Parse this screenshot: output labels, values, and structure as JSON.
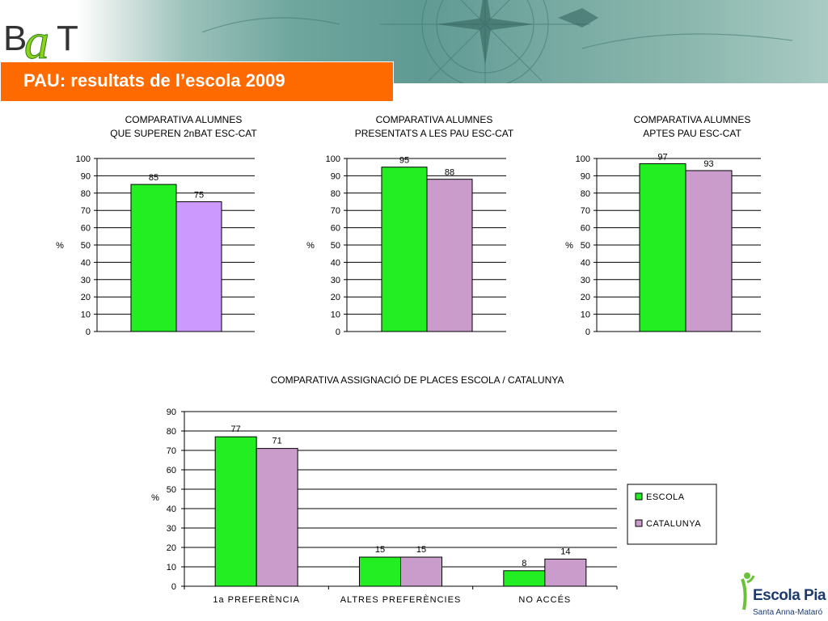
{
  "header": {
    "logo_text": "BaT",
    "title": "PAU: resultats de l’escola 2009"
  },
  "colors": {
    "escola": "#22ee22",
    "catalunya_top": "#c99ccb",
    "catalunya_first_chart": "#cc99ff",
    "title_box": "#ff6a00"
  },
  "chart_data": [
    {
      "type": "bar",
      "title": [
        "COMPARATIVA ALUMNES",
        "QUE SUPEREN 2nBAT ESC-CAT"
      ],
      "ylabel": "%",
      "ylim": [
        0,
        100
      ],
      "yticks": [
        0,
        10,
        20,
        30,
        40,
        50,
        60,
        70,
        80,
        90,
        100
      ],
      "grid": true,
      "series": [
        {
          "values": [
            85
          ]
        },
        {
          "values": [
            75
          ]
        }
      ],
      "data_labels": [
        "85",
        "75"
      ]
    },
    {
      "type": "bar",
      "title": [
        "COMPARATIVA ALUMNES",
        "PRESENTATS A LES PAU ESC-CAT"
      ],
      "ylabel": "%",
      "ylim": [
        0,
        100
      ],
      "yticks": [
        0,
        10,
        20,
        30,
        40,
        50,
        60,
        70,
        80,
        90,
        100
      ],
      "grid": true,
      "series": [
        {
          "values": [
            95
          ]
        },
        {
          "values": [
            88
          ]
        }
      ],
      "data_labels": [
        "95",
        "88"
      ]
    },
    {
      "type": "bar",
      "title": [
        "COMPARATIVA ALUMNES",
        "APTES PAU ESC-CAT"
      ],
      "ylabel": "%",
      "ylim": [
        0,
        100
      ],
      "yticks": [
        0,
        10,
        20,
        30,
        40,
        50,
        60,
        70,
        80,
        90,
        100
      ],
      "grid": true,
      "series": [
        {
          "values": [
            97
          ]
        },
        {
          "values": [
            93
          ]
        }
      ],
      "data_labels": [
        "97",
        "93"
      ]
    },
    {
      "type": "bar",
      "title": [
        "COMPARATIVA ASSIGNACIÓ DE PLACES ESCOLA / CATALUNYA"
      ],
      "ylabel": "%",
      "ylim": [
        0,
        90
      ],
      "yticks": [
        0,
        10,
        20,
        30,
        40,
        50,
        60,
        70,
        80,
        90
      ],
      "grid": true,
      "legend": "right",
      "categories": [
        "1a PREFERÈNCIA",
        "ALTRES PREFERÈNCIES",
        "NO ACCÉS"
      ],
      "series": [
        {
          "name": "ESCOLA",
          "values": [
            77,
            15,
            8
          ]
        },
        {
          "name": "CATALUNYA",
          "values": [
            71,
            15,
            14
          ]
        }
      ],
      "data_labels": [
        [
          "77",
          "15",
          "8"
        ],
        [
          "71",
          "15",
          "14"
        ]
      ]
    }
  ],
  "footer": {
    "brand_name": "Escola Pia",
    "brand_sub": "Santa Anna-Mataró"
  }
}
